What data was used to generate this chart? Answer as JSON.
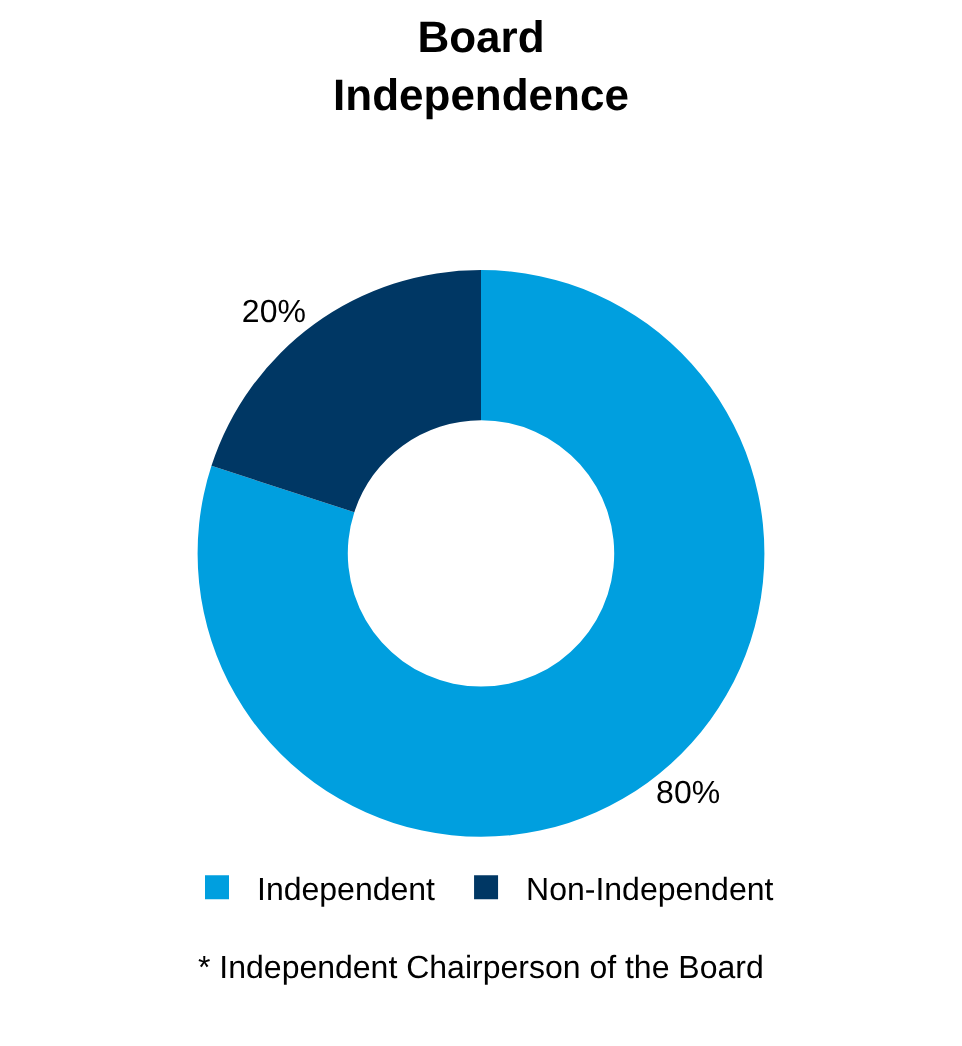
{
  "chart_data": {
    "type": "donut",
    "title": "Board\nIndependence",
    "categories": [
      "Independent",
      "Non-Independent"
    ],
    "values": [
      80,
      20
    ],
    "colors": [
      "#009fdf",
      "#003764"
    ],
    "value_labels": [
      "80%",
      "20%"
    ],
    "legend": "bottom",
    "annotations": [
      "* Independent Chairperson of the Board"
    ]
  }
}
